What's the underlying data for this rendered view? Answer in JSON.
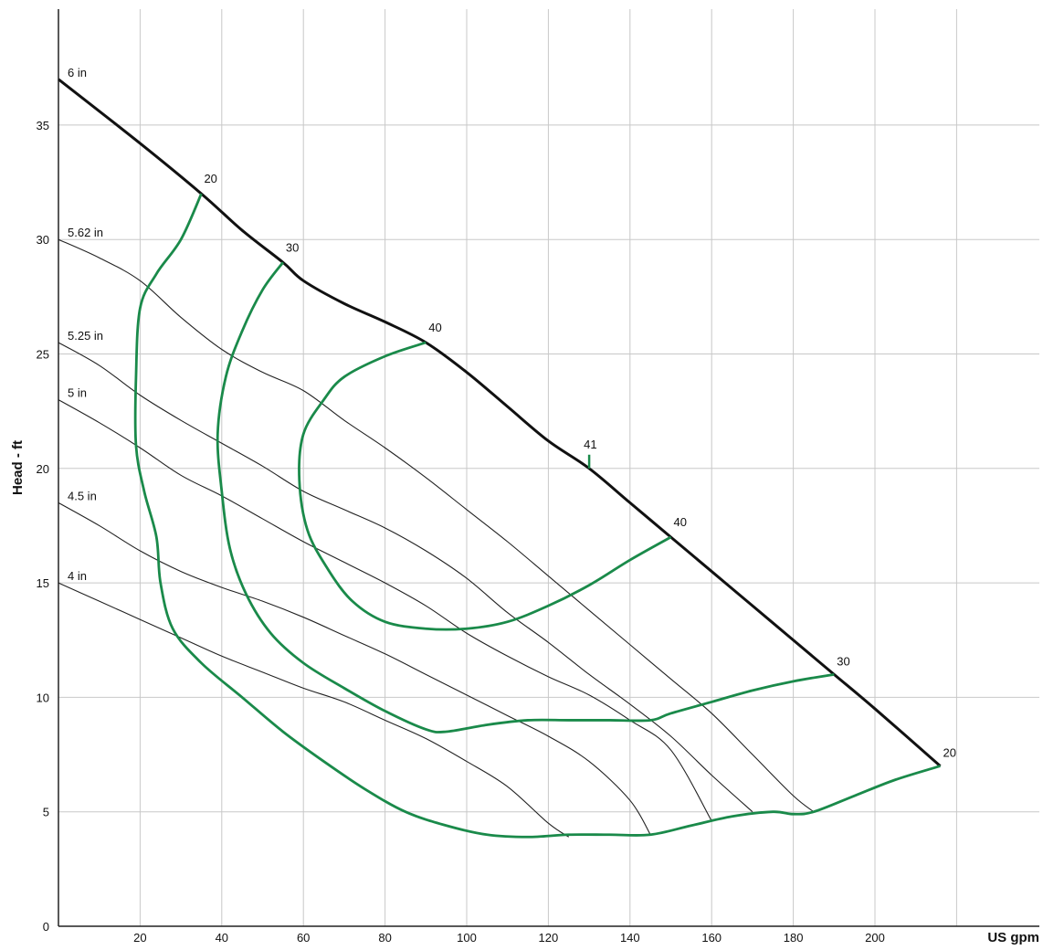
{
  "chart_data": {
    "type": "line",
    "xlabel": "US gpm",
    "ylabel": "Head - ft",
    "xlim": [
      0,
      220
    ],
    "ylim": [
      0,
      40
    ],
    "x_ticks": [
      20,
      40,
      60,
      80,
      100,
      120,
      140,
      160,
      180,
      200
    ],
    "y_ticks": [
      0,
      5,
      10,
      15,
      20,
      25,
      30,
      35
    ],
    "grid": true,
    "colors": {
      "impeller_curve": "#222222",
      "max_curve": "#111111",
      "efficiency": "#1a8a4a",
      "grid": "#c8c8c8"
    },
    "impeller_curves": [
      {
        "label": "6 in",
        "max": true,
        "points": [
          [
            0,
            37
          ],
          [
            20,
            34.2
          ],
          [
            35,
            32
          ],
          [
            45,
            30.4
          ],
          [
            55,
            29
          ],
          [
            60,
            28.2
          ],
          [
            70,
            27.2
          ],
          [
            80,
            26.4
          ],
          [
            90,
            25.5
          ],
          [
            100,
            24.2
          ],
          [
            110,
            22.7
          ],
          [
            120,
            21.2
          ],
          [
            130,
            20
          ],
          [
            140,
            18.5
          ],
          [
            150,
            17
          ],
          [
            160,
            15.5
          ],
          [
            170,
            14
          ],
          [
            180,
            12.5
          ],
          [
            190,
            11
          ],
          [
            200,
            9.5
          ],
          [
            216,
            7
          ]
        ]
      },
      {
        "label": "5.62 in",
        "points": [
          [
            0,
            30
          ],
          [
            10,
            29.2
          ],
          [
            20,
            28.2
          ],
          [
            30,
            26.6
          ],
          [
            40,
            25.2
          ],
          [
            50,
            24.2
          ],
          [
            60,
            23.4
          ],
          [
            70,
            22.1
          ],
          [
            80,
            20.9
          ],
          [
            90,
            19.6
          ],
          [
            100,
            18.2
          ],
          [
            110,
            16.8
          ],
          [
            120,
            15.3
          ],
          [
            130,
            13.8
          ],
          [
            140,
            12.3
          ],
          [
            150,
            10.8
          ],
          [
            160,
            9.3
          ],
          [
            170,
            7.5
          ],
          [
            180,
            5.7
          ],
          [
            185,
            5
          ]
        ]
      },
      {
        "label": "5.25 in",
        "points": [
          [
            0,
            25.5
          ],
          [
            10,
            24.5
          ],
          [
            20,
            23.2
          ],
          [
            30,
            22.1
          ],
          [
            40,
            21.1
          ],
          [
            50,
            20.1
          ],
          [
            60,
            19
          ],
          [
            70,
            18.2
          ],
          [
            80,
            17.4
          ],
          [
            90,
            16.4
          ],
          [
            100,
            15.2
          ],
          [
            110,
            13.7
          ],
          [
            120,
            12.4
          ],
          [
            130,
            11
          ],
          [
            140,
            9.7
          ],
          [
            150,
            8.3
          ],
          [
            160,
            6.6
          ],
          [
            170,
            5
          ]
        ]
      },
      {
        "label": "5 in",
        "points": [
          [
            0,
            23
          ],
          [
            10,
            22
          ],
          [
            20,
            20.9
          ],
          [
            30,
            19.7
          ],
          [
            40,
            18.8
          ],
          [
            50,
            17.8
          ],
          [
            60,
            16.8
          ],
          [
            70,
            15.9
          ],
          [
            80,
            15
          ],
          [
            90,
            14
          ],
          [
            100,
            12.8
          ],
          [
            110,
            11.8
          ],
          [
            120,
            10.9
          ],
          [
            130,
            10.1
          ],
          [
            140,
            9
          ],
          [
            150,
            7.7
          ],
          [
            160,
            4.6
          ]
        ]
      },
      {
        "label": "4.5 in",
        "points": [
          [
            0,
            18.5
          ],
          [
            10,
            17.5
          ],
          [
            20,
            16.4
          ],
          [
            30,
            15.5
          ],
          [
            40,
            14.8
          ],
          [
            50,
            14.2
          ],
          [
            60,
            13.5
          ],
          [
            70,
            12.7
          ],
          [
            80,
            11.9
          ],
          [
            90,
            11
          ],
          [
            100,
            10.1
          ],
          [
            110,
            9.2
          ],
          [
            120,
            8.3
          ],
          [
            130,
            7.2
          ],
          [
            140,
            5.5
          ],
          [
            145,
            4
          ]
        ]
      },
      {
        "label": "4 in",
        "points": [
          [
            0,
            15
          ],
          [
            10,
            14.2
          ],
          [
            20,
            13.4
          ],
          [
            30,
            12.6
          ],
          [
            40,
            11.8
          ],
          [
            50,
            11.1
          ],
          [
            60,
            10.4
          ],
          [
            70,
            9.8
          ],
          [
            80,
            9
          ],
          [
            90,
            8.2
          ],
          [
            100,
            7.2
          ],
          [
            110,
            6.1
          ],
          [
            120,
            4.5
          ],
          [
            125,
            3.9
          ]
        ]
      }
    ],
    "efficiency_curves": [
      {
        "label": "20",
        "label_at": [
          35,
          32
        ],
        "points": [
          [
            35,
            32
          ],
          [
            30,
            30
          ],
          [
            24,
            28.5
          ],
          [
            20,
            27
          ],
          [
            19,
            24
          ],
          [
            19,
            21
          ],
          [
            21,
            19
          ],
          [
            24,
            17
          ],
          [
            25,
            15
          ],
          [
            28,
            13
          ],
          [
            35,
            11.5
          ],
          [
            45,
            10
          ],
          [
            55,
            8.5
          ],
          [
            65,
            7.2
          ],
          [
            75,
            6
          ],
          [
            85,
            5
          ],
          [
            95,
            4.4
          ],
          [
            105,
            4
          ],
          [
            115,
            3.9
          ],
          [
            125,
            4
          ],
          [
            135,
            4
          ],
          [
            145,
            4
          ],
          [
            155,
            4.4
          ],
          [
            165,
            4.8
          ],
          [
            175,
            5
          ],
          [
            180,
            4.9
          ],
          [
            185,
            5
          ],
          [
            195,
            5.7
          ],
          [
            205,
            6.4
          ],
          [
            216,
            7
          ]
        ]
      },
      {
        "label": "30",
        "label_at": [
          55,
          29
        ],
        "points": [
          [
            55,
            29
          ],
          [
            50,
            27.8
          ],
          [
            45,
            26
          ],
          [
            41,
            24
          ],
          [
            39,
            21.5
          ],
          [
            40,
            19
          ],
          [
            42,
            16.5
          ],
          [
            46,
            14.5
          ],
          [
            52,
            12.8
          ],
          [
            60,
            11.5
          ],
          [
            70,
            10.4
          ],
          [
            80,
            9.4
          ],
          [
            90,
            8.6
          ],
          [
            95,
            8.5
          ],
          [
            105,
            8.8
          ],
          [
            115,
            9
          ],
          [
            125,
            9
          ],
          [
            135,
            9
          ],
          [
            145,
            9
          ],
          [
            150,
            9.3
          ],
          [
            160,
            9.8
          ],
          [
            170,
            10.3
          ],
          [
            180,
            10.7
          ],
          [
            190,
            11
          ]
        ]
      },
      {
        "label": "40",
        "label_at": [
          90,
          25.5
        ],
        "points": [
          [
            90,
            25.5
          ],
          [
            80,
            24.9
          ],
          [
            70,
            24
          ],
          [
            65,
            23
          ],
          [
            60,
            21.5
          ],
          [
            59,
            19.5
          ],
          [
            61,
            17.3
          ],
          [
            66,
            15.6
          ],
          [
            72,
            14.2
          ],
          [
            80,
            13.3
          ],
          [
            90,
            13
          ],
          [
            100,
            13
          ],
          [
            110,
            13.3
          ],
          [
            120,
            14
          ],
          [
            130,
            14.9
          ],
          [
            140,
            16
          ],
          [
            150,
            17
          ]
        ]
      },
      {
        "label": "40",
        "label_at": [
          150,
          17
        ],
        "points": []
      },
      {
        "label": "41",
        "label_at": [
          130,
          20
        ],
        "marker": true,
        "points": [
          [
            130,
            20
          ],
          [
            130,
            20.6
          ]
        ]
      }
    ]
  }
}
